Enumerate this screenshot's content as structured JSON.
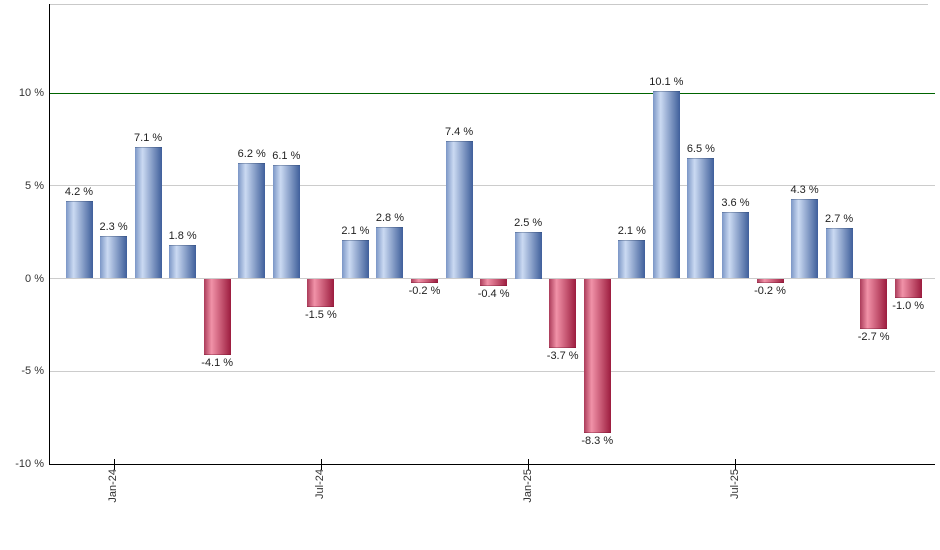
{
  "chart_data": {
    "type": "bar",
    "title": "",
    "xlabel": "",
    "ylabel": "",
    "unit": "%",
    "ylim": [
      -10,
      14.8
    ],
    "grid": true,
    "legend": "none",
    "threshold": {
      "value": 10,
      "color": "#006400"
    },
    "y_ticks": [
      {
        "value": 10,
        "label": "10 %"
      },
      {
        "value": 5,
        "label": "5 %"
      },
      {
        "value": 0,
        "label": "0 %"
      },
      {
        "value": -5,
        "label": "-5 %"
      },
      {
        "value": -10,
        "label": "-10 %"
      }
    ],
    "x_ticks": [
      {
        "bar_index": 1,
        "label": "Jan-24"
      },
      {
        "bar_index": 7,
        "label": "Jul-24"
      },
      {
        "bar_index": 13,
        "label": "Jan-25"
      },
      {
        "bar_index": 19,
        "label": "Jul-25"
      }
    ],
    "bars": [
      {
        "value": 4.2,
        "label": "4.2 %"
      },
      {
        "value": 2.3,
        "label": "2.3 %"
      },
      {
        "value": 7.1,
        "label": "7.1 %"
      },
      {
        "value": 1.8,
        "label": "1.8 %"
      },
      {
        "value": -4.1,
        "label": "-4.1 %"
      },
      {
        "value": 6.2,
        "label": "6.2 %"
      },
      {
        "value": 6.1,
        "label": "6.1 %"
      },
      {
        "value": -1.5,
        "label": "-1.5 %"
      },
      {
        "value": 2.1,
        "label": "2.1 %"
      },
      {
        "value": 2.8,
        "label": "2.8 %"
      },
      {
        "value": -0.2,
        "label": "-0.2 %"
      },
      {
        "value": 7.4,
        "label": "7.4 %"
      },
      {
        "value": -0.4,
        "label": "-0.4 %"
      },
      {
        "value": 2.5,
        "label": "2.5 %"
      },
      {
        "value": -3.7,
        "label": "-3.7 %"
      },
      {
        "value": -8.3,
        "label": "-8.3 %"
      },
      {
        "value": 2.1,
        "label": "2.1 %"
      },
      {
        "value": 10.1,
        "label": "10.1 %"
      },
      {
        "value": 6.5,
        "label": "6.5 %"
      },
      {
        "value": 3.6,
        "label": "3.6 %"
      },
      {
        "value": -0.2,
        "label": "-0.2 %"
      },
      {
        "value": 4.3,
        "label": "4.3 %"
      },
      {
        "value": 2.7,
        "label": "2.7 %"
      },
      {
        "value": -2.7,
        "label": "-2.7 %"
      },
      {
        "value": -1.0,
        "label": "-1.0 %"
      }
    ],
    "colors": {
      "positive_edge": "#7b96c6",
      "positive_light": "#cbdaf2",
      "positive_dark": "#3f5f9b",
      "negative_edge": "#aa3b59",
      "negative_light": "#f192a8",
      "negative_dark": "#9c1c3e",
      "grid": "#cccccc",
      "axis": "#000000",
      "threshold_line": "#006400",
      "label_text": "#222222"
    }
  }
}
